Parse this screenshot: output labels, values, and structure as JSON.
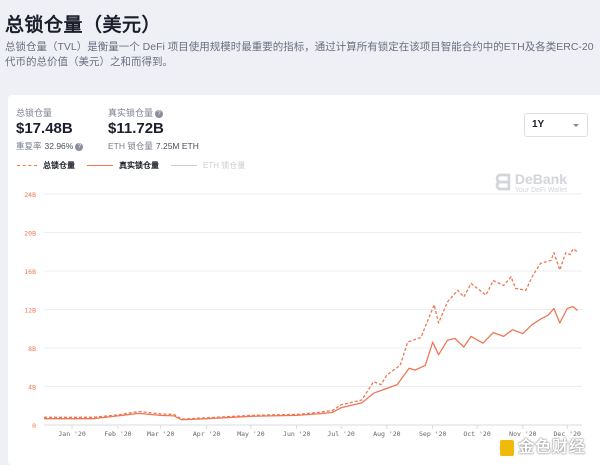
{
  "header": {
    "title": "总锁仓量（美元）",
    "description": "总锁仓量（TVL）是衡量一个 DeFi 项目使用规模时最重要的指标，通过计算所有锁定在该项目智能合约中的ETH及各类ERC-20代币的总价值（美元）之和而得到。"
  },
  "stats": {
    "total": {
      "label": "总锁仓量",
      "value": "$17.48B",
      "sub_label": "重复率",
      "sub_value": "32.96%"
    },
    "real": {
      "label": "真实锁仓量",
      "value": "$11.72B",
      "sub_label": "ETH 锁仓量",
      "sub_value": "7.25M ETH"
    }
  },
  "range_select": {
    "value": "1Y"
  },
  "legend": [
    {
      "label": "总锁仓量",
      "style": "dashed",
      "color": "#f07654"
    },
    {
      "label": "真实锁仓量",
      "style": "solid",
      "color": "#f07654"
    },
    {
      "label": "ETH 锁仓量",
      "style": "solid",
      "color": "#cccccc",
      "disabled": true
    }
  ],
  "watermarks": {
    "debank_name": "DeBank",
    "debank_tagline": "Your DeFi Wallet",
    "jinse": "金色财经"
  },
  "chart_data": {
    "type": "line",
    "x_range": [
      "2019-12-13",
      "2020-12-11"
    ],
    "ylim": [
      0,
      24
    ],
    "y_ticks": [
      "0",
      "4B",
      "8B",
      "12B",
      "16B",
      "20B",
      "24B"
    ],
    "x_ticks": [
      {
        "date": "2020-01-01",
        "label": "Jan '20"
      },
      {
        "date": "2020-02-01",
        "label": "Feb '20"
      },
      {
        "date": "2020-03-01",
        "label": "Mar '20"
      },
      {
        "date": "2020-04-01",
        "label": "Apr '20"
      },
      {
        "date": "2020-05-01",
        "label": "May '20"
      },
      {
        "date": "2020-06-01",
        "label": "Jun '20"
      },
      {
        "date": "2020-07-01",
        "label": "Jul '20"
      },
      {
        "date": "2020-08-01",
        "label": "Aug '20"
      },
      {
        "date": "2020-09-01",
        "label": "Sep '20"
      },
      {
        "date": "2020-10-01",
        "label": "Oct '20"
      },
      {
        "date": "2020-11-01",
        "label": "Nov '20"
      },
      {
        "date": "2020-12-01",
        "label": "Dec '20"
      }
    ],
    "grid": true,
    "series": [
      {
        "name": "总锁仓量",
        "style": "dashed",
        "color": "#f07654",
        "points": [
          [
            "2019-12-13",
            0.8
          ],
          [
            "2020-01-15",
            0.8
          ],
          [
            "2020-02-01",
            1.05
          ],
          [
            "2020-02-15",
            1.4
          ],
          [
            "2020-03-01",
            1.15
          ],
          [
            "2020-03-10",
            1.1
          ],
          [
            "2020-03-15",
            0.6
          ],
          [
            "2020-04-01",
            0.75
          ],
          [
            "2020-05-01",
            1.0
          ],
          [
            "2020-05-15",
            1.05
          ],
          [
            "2020-06-01",
            1.1
          ],
          [
            "2020-06-15",
            1.3
          ],
          [
            "2020-06-25",
            1.5
          ],
          [
            "2020-07-01",
            2.1
          ],
          [
            "2020-07-15",
            2.6
          ],
          [
            "2020-07-23",
            4.5
          ],
          [
            "2020-07-28",
            4.2
          ],
          [
            "2020-08-01",
            5.2
          ],
          [
            "2020-08-10",
            6.2
          ],
          [
            "2020-08-15",
            8.6
          ],
          [
            "2020-08-24",
            9.1
          ],
          [
            "2020-09-02",
            12.5
          ],
          [
            "2020-09-05",
            10.6
          ],
          [
            "2020-09-11",
            12.8
          ],
          [
            "2020-09-18",
            14.0
          ],
          [
            "2020-09-22",
            13.3
          ],
          [
            "2020-09-27",
            14.7
          ],
          [
            "2020-10-07",
            13.5
          ],
          [
            "2020-10-12",
            15.0
          ],
          [
            "2020-10-19",
            14.5
          ],
          [
            "2020-10-24",
            15.4
          ],
          [
            "2020-10-27",
            14.2
          ],
          [
            "2020-11-03",
            14.0
          ],
          [
            "2020-11-08",
            15.6
          ],
          [
            "2020-11-13",
            16.8
          ],
          [
            "2020-11-20",
            17.1
          ],
          [
            "2020-11-22",
            17.9
          ],
          [
            "2020-11-26",
            16.1
          ],
          [
            "2020-11-30",
            17.9
          ],
          [
            "2020-12-03",
            17.7
          ],
          [
            "2020-12-05",
            18.3
          ],
          [
            "2020-12-08",
            18.0
          ]
        ]
      },
      {
        "name": "真实锁仓量",
        "style": "solid",
        "color": "#f07654",
        "points": [
          [
            "2019-12-13",
            0.65
          ],
          [
            "2020-01-15",
            0.65
          ],
          [
            "2020-02-01",
            0.95
          ],
          [
            "2020-02-15",
            1.2
          ],
          [
            "2020-03-01",
            1.0
          ],
          [
            "2020-03-10",
            0.95
          ],
          [
            "2020-03-15",
            0.55
          ],
          [
            "2020-04-01",
            0.65
          ],
          [
            "2020-05-01",
            0.9
          ],
          [
            "2020-05-15",
            0.95
          ],
          [
            "2020-06-01",
            1.0
          ],
          [
            "2020-06-15",
            1.15
          ],
          [
            "2020-06-25",
            1.3
          ],
          [
            "2020-07-01",
            1.8
          ],
          [
            "2020-07-15",
            2.3
          ],
          [
            "2020-07-23",
            3.3
          ],
          [
            "2020-08-08",
            4.2
          ],
          [
            "2020-08-16",
            5.9
          ],
          [
            "2020-08-20",
            5.7
          ],
          [
            "2020-08-27",
            6.2
          ],
          [
            "2020-09-01",
            8.6
          ],
          [
            "2020-09-05",
            7.3
          ],
          [
            "2020-09-11",
            8.8
          ],
          [
            "2020-09-16",
            9.0
          ],
          [
            "2020-09-22",
            8.1
          ],
          [
            "2020-09-27",
            9.2
          ],
          [
            "2020-10-05",
            8.5
          ],
          [
            "2020-10-12",
            9.6
          ],
          [
            "2020-10-19",
            9.2
          ],
          [
            "2020-10-25",
            9.9
          ],
          [
            "2020-11-01",
            9.5
          ],
          [
            "2020-11-07",
            10.4
          ],
          [
            "2020-11-13",
            11.0
          ],
          [
            "2020-11-18",
            11.4
          ],
          [
            "2020-11-22",
            12.1
          ],
          [
            "2020-11-26",
            10.6
          ],
          [
            "2020-12-01",
            12.1
          ],
          [
            "2020-12-05",
            12.3
          ],
          [
            "2020-12-08",
            11.9
          ]
        ]
      }
    ]
  }
}
